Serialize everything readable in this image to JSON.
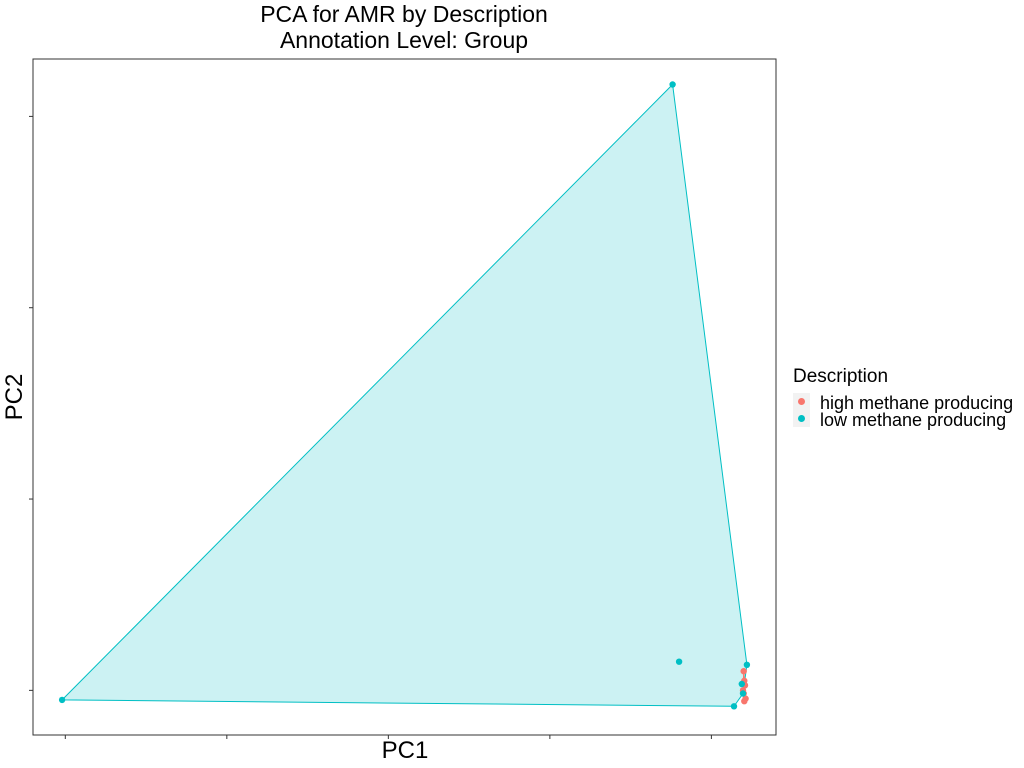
{
  "chart_data": {
    "type": "scatter",
    "title": "PCA for AMR by Description",
    "subtitle": "Annotation Level: Group",
    "xlabel": "PC1",
    "ylabel": "PC2",
    "xlim": [
      -0.05,
      1.1
    ],
    "ylim": [
      -0.02,
      1.04
    ],
    "tick_labels_shown": false,
    "x_ticks": [
      0,
      0.25,
      0.5,
      0.75,
      1.0
    ],
    "y_ticks": [
      0.05,
      0.35,
      0.65,
      0.95
    ],
    "grid": false,
    "legend": {
      "title": "Description",
      "placement": "right",
      "entries": [
        "high methane producing",
        "low methane producing"
      ]
    },
    "colors": {
      "high methane producing": "#F8766D",
      "low methane producing": "#00BFC4"
    },
    "series": [
      {
        "name": "high methane producing",
        "hull": true,
        "x": [
          1.05,
          1.051,
          1.052,
          1.049,
          1.05,
          1.053,
          1.051
        ],
        "y": [
          0.08,
          0.065,
          0.058,
          0.05,
          0.045,
          0.037,
          0.033
        ]
      },
      {
        "name": "low methane producing",
        "hull": true,
        "x": [
          -0.005,
          0.94,
          1.055,
          1.035,
          0.95,
          1.047,
          1.049
        ],
        "y": [
          0.035,
          1.0,
          0.09,
          0.025,
          0.095,
          0.06,
          0.045
        ]
      }
    ]
  }
}
